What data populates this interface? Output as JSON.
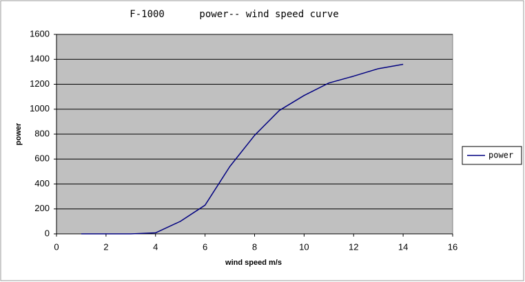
{
  "chart_data": {
    "type": "line",
    "title": "F-1000      power-- wind speed curve",
    "x_label": "wind speed m/s",
    "y_label": "power",
    "x": [
      1,
      2,
      3,
      4,
      5,
      6,
      7,
      8,
      9,
      10,
      11,
      12,
      13,
      14
    ],
    "series": [
      {
        "name": "power",
        "color": "#000080",
        "values": [
          0,
          0,
          0,
          8,
          100,
          230,
          540,
          790,
          990,
          1110,
          1210,
          1265,
          1325,
          1360
        ]
      }
    ],
    "xlim": [
      0,
      16
    ],
    "xticks": [
      0,
      2,
      4,
      6,
      8,
      10,
      12,
      14,
      16
    ],
    "ylim": [
      0,
      1600
    ],
    "yticks": [
      0,
      200,
      400,
      600,
      800,
      1000,
      1200,
      1400,
      1600
    ],
    "grid": true,
    "legend": "right",
    "plot_background": "#c0c0c0"
  }
}
